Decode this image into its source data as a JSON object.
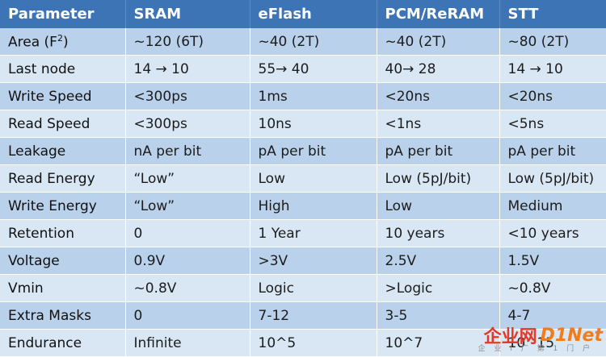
{
  "table": {
    "headers": [
      "Parameter",
      "SRAM",
      "eFlash",
      "PCM/ReRAM",
      "STT"
    ],
    "area_label": "Area (F",
    "area_sup": "2",
    "area_close": ")",
    "rows": [
      [
        "",
        "~120 (6T)",
        "~40 (2T)",
        "~40 (2T)",
        "~80 (2T)"
      ],
      [
        "Last node",
        "14 → 10",
        "55→ 40",
        "40→ 28",
        "14 → 10"
      ],
      [
        "Write Speed",
        "<300ps",
        "1ms",
        "<20ns",
        "<20ns"
      ],
      [
        "Read Speed",
        "<300ps",
        "10ns",
        "<1ns",
        "<5ns"
      ],
      [
        "Leakage",
        "nA per bit",
        "pA per bit",
        "pA per bit",
        "pA per bit"
      ],
      [
        "Read Energy",
        "“Low”",
        "Low",
        "Low (5pJ/bit)",
        "Low (5pJ/bit)"
      ],
      [
        "Write Energy",
        "“Low”",
        "High",
        "Low",
        "Medium"
      ],
      [
        "Retention",
        "0",
        "1 Year",
        "10 years",
        "<10 years"
      ],
      [
        "Voltage",
        "0.9V",
        ">3V",
        "2.5V",
        "1.5V"
      ],
      [
        "Vmin",
        "~0.8V",
        "Logic",
        ">Logic",
        "~0.8V"
      ],
      [
        "Extra Masks",
        "0",
        "7-12",
        "3-5",
        "4-7"
      ],
      [
        "Endurance",
        "Infinite",
        "10^5",
        "10^7",
        "10^15"
      ]
    ]
  },
  "watermark": {
    "text_a": "企业网",
    "text_b": "D1Net",
    "sub": "企 业 I 广 第 1 门 户"
  }
}
